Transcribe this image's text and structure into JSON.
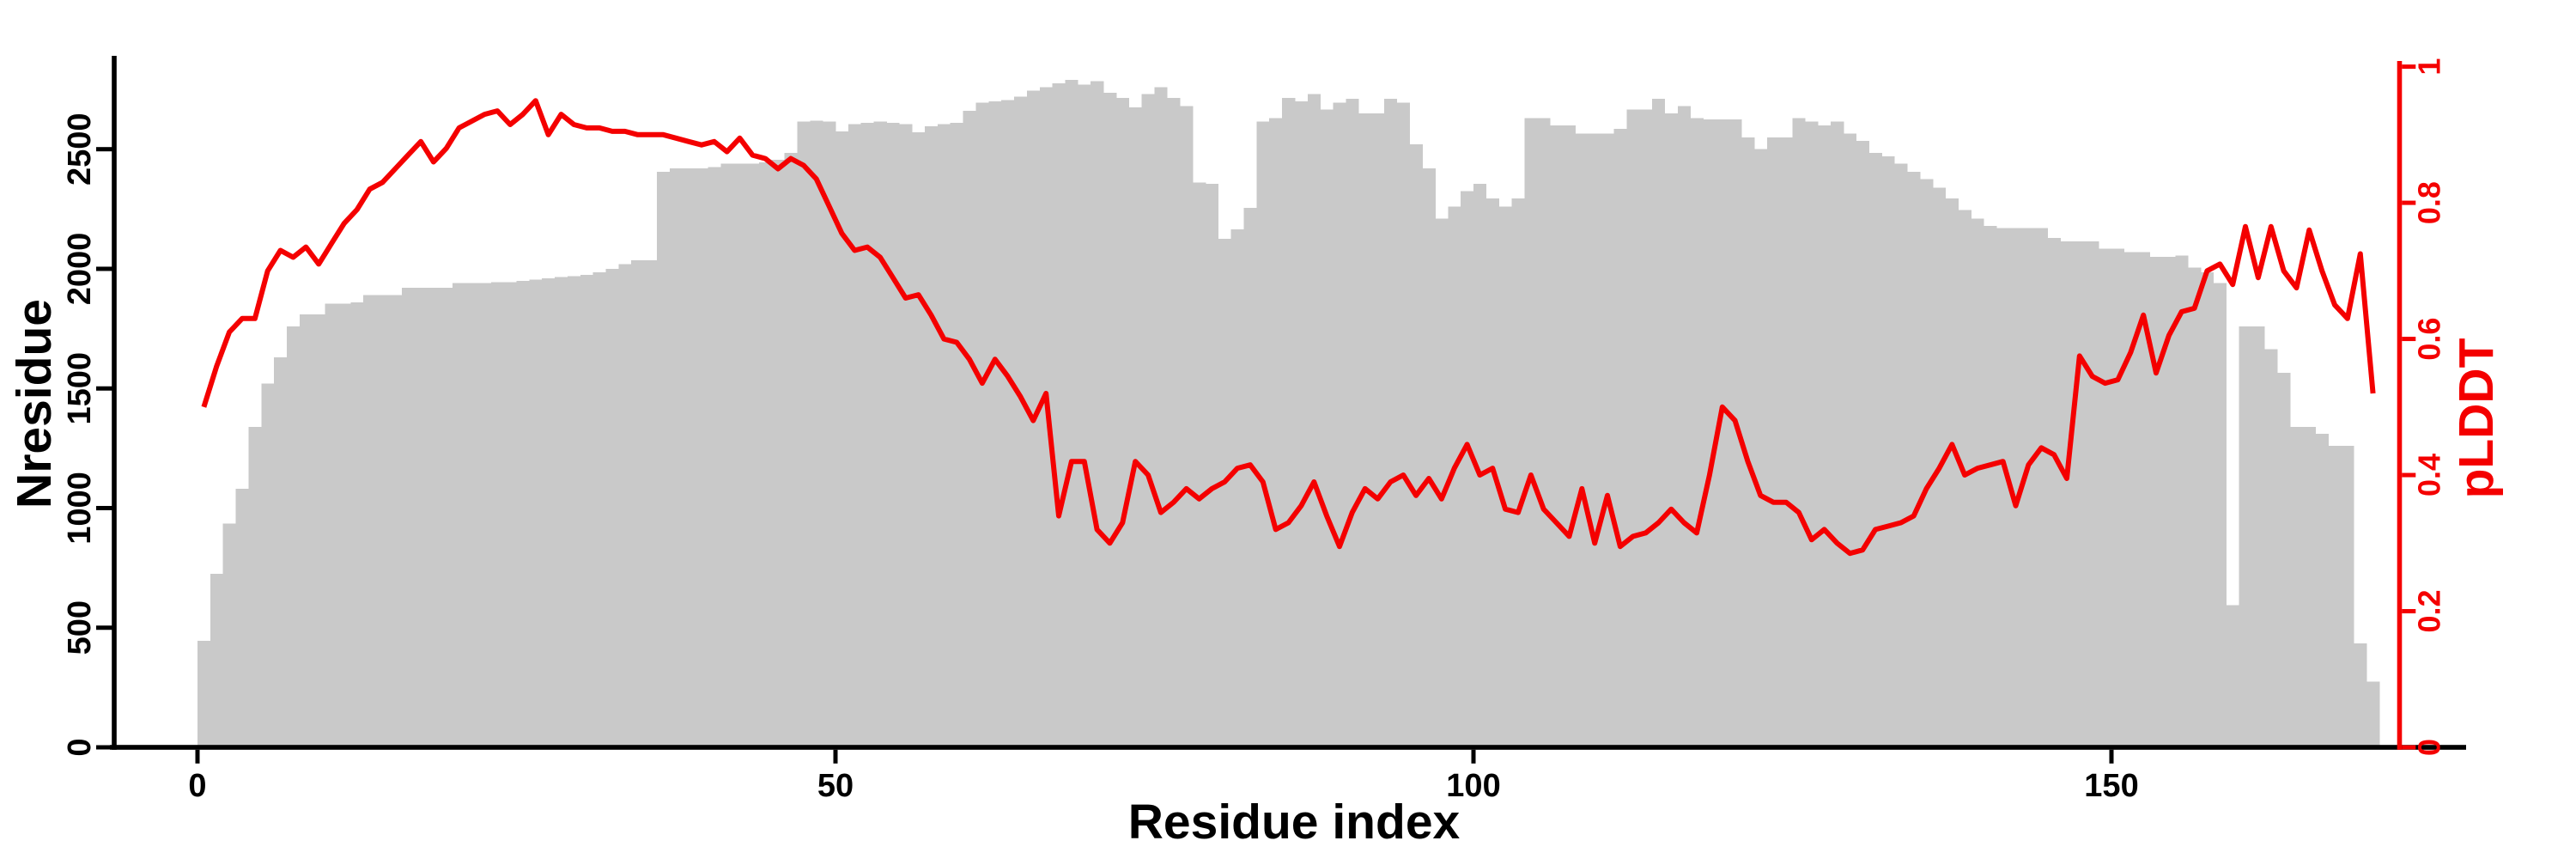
{
  "chart_data": {
    "type": "bar+line",
    "title": "",
    "xlabel": "Residue index",
    "ylabel_left": "Nresidue",
    "ylabel_right": "pLDDT",
    "x_tick_values": [
      0,
      50,
      100,
      150
    ],
    "x_tick_labels": [
      "0",
      "50",
      "100",
      "150"
    ],
    "y_left_tick_values": [
      0,
      500,
      1000,
      1500,
      2000,
      2500
    ],
    "y_left_tick_labels": [
      "0",
      "500",
      "1000",
      "1500",
      "2000",
      "2500"
    ],
    "y_right_tick_values": [
      0,
      0.2,
      0.4,
      0.6,
      0.8,
      1
    ],
    "y_right_tick_labels": [
      "0",
      "0.2",
      "0.4",
      "0.6",
      "0.8",
      "1"
    ],
    "xlim": [
      -7,
      178
    ],
    "ylim_left": [
      0,
      2900
    ],
    "ylim_right": [
      0,
      1.0
    ],
    "grid": false,
    "legend": "none",
    "colors": {
      "bar": "#c9c9c9",
      "line": "#f40000",
      "axis": "#000000"
    },
    "series": [
      {
        "name": "Nresidue",
        "type": "bar",
        "axis": "left",
        "x_start": 0,
        "x_step": 1,
        "values": [
          445,
          725,
          935,
          1080,
          1340,
          1520,
          1630,
          1760,
          1810,
          1810,
          1855,
          1855,
          1860,
          1890,
          1890,
          1890,
          1920,
          1920,
          1920,
          1920,
          1940,
          1940,
          1940,
          1945,
          1945,
          1950,
          1955,
          1960,
          1965,
          1970,
          1975,
          1985,
          2000,
          2020,
          2035,
          2035,
          2405,
          2420,
          2420,
          2420,
          2425,
          2440,
          2440,
          2440,
          2445,
          2455,
          2485,
          2615,
          2620,
          2615,
          2575,
          2605,
          2610,
          2615,
          2610,
          2605,
          2570,
          2595,
          2605,
          2610,
          2660,
          2695,
          2700,
          2705,
          2720,
          2745,
          2760,
          2775,
          2790,
          2770,
          2785,
          2735,
          2715,
          2675,
          2730,
          2760,
          2715,
          2680,
          2360,
          2355,
          2125,
          2165,
          2255,
          2615,
          2630,
          2715,
          2700,
          2730,
          2665,
          2695,
          2710,
          2650,
          2650,
          2710,
          2695,
          2520,
          2420,
          2210,
          2260,
          2325,
          2355,
          2295,
          2260,
          2295,
          2630,
          2630,
          2600,
          2600,
          2565,
          2565,
          2565,
          2585,
          2665,
          2665,
          2710,
          2650,
          2680,
          2630,
          2625,
          2625,
          2625,
          2550,
          2500,
          2550,
          2550,
          2630,
          2615,
          2600,
          2615,
          2565,
          2535,
          2485,
          2470,
          2440,
          2405,
          2375,
          2340,
          2295,
          2245,
          2210,
          2180,
          2170,
          2170,
          2170,
          2170,
          2130,
          2115,
          2115,
          2115,
          2085,
          2085,
          2070,
          2070,
          2050,
          2050,
          2055,
          2005,
          1985,
          1940,
          595,
          1760,
          1760,
          1665,
          1565,
          1340,
          1340,
          1310,
          1260,
          1260,
          435,
          275
        ]
      },
      {
        "name": "pLDDT",
        "type": "line",
        "axis": "right",
        "x_start": 0,
        "x_step": 1,
        "values": [
          0.5,
          0.56,
          0.61,
          0.63,
          0.63,
          0.7,
          0.73,
          0.72,
          0.735,
          0.71,
          0.74,
          0.77,
          0.79,
          0.82,
          0.83,
          0.85,
          0.87,
          0.89,
          0.86,
          0.88,
          0.91,
          0.92,
          0.93,
          0.935,
          0.915,
          0.93,
          0.95,
          0.9,
          0.93,
          0.915,
          0.91,
          0.91,
          0.905,
          0.905,
          0.9,
          0.9,
          0.9,
          0.895,
          0.89,
          0.885,
          0.89,
          0.875,
          0.895,
          0.87,
          0.865,
          0.85,
          0.865,
          0.855,
          0.835,
          0.795,
          0.755,
          0.73,
          0.735,
          0.72,
          0.69,
          0.66,
          0.665,
          0.635,
          0.6,
          0.595,
          0.57,
          0.535,
          0.57,
          0.545,
          0.515,
          0.48,
          0.52,
          0.34,
          0.42,
          0.42,
          0.32,
          0.3,
          0.33,
          0.42,
          0.4,
          0.345,
          0.36,
          0.38,
          0.365,
          0.38,
          0.39,
          0.41,
          0.415,
          0.39,
          0.32,
          0.33,
          0.355,
          0.39,
          0.34,
          0.295,
          0.345,
          0.38,
          0.365,
          0.39,
          0.4,
          0.37,
          0.395,
          0.365,
          0.41,
          0.445,
          0.4,
          0.41,
          0.35,
          0.345,
          0.4,
          0.35,
          0.33,
          0.31,
          0.38,
          0.3,
          0.37,
          0.295,
          0.31,
          0.315,
          0.33,
          0.35,
          0.33,
          0.315,
          0.4,
          0.5,
          0.48,
          0.42,
          0.37,
          0.36,
          0.36,
          0.345,
          0.305,
          0.32,
          0.3,
          0.285,
          0.29,
          0.32,
          0.325,
          0.33,
          0.34,
          0.38,
          0.41,
          0.445,
          0.4,
          0.41,
          0.415,
          0.42,
          0.355,
          0.415,
          0.44,
          0.43,
          0.395,
          0.575,
          0.545,
          0.535,
          0.54,
          0.58,
          0.635,
          0.55,
          0.605,
          0.64,
          0.645,
          0.7,
          0.71,
          0.68,
          0.765,
          0.69,
          0.765,
          0.7,
          0.675,
          0.76,
          0.7,
          0.65,
          0.63,
          0.725,
          0.52
        ]
      }
    ]
  }
}
